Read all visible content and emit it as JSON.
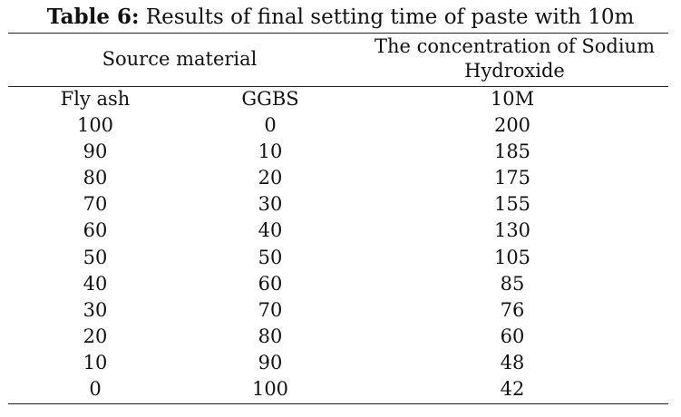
{
  "caption": {
    "label": "Table 6:",
    "text": "Results of final setting time of paste with 10m"
  },
  "header": {
    "source_material": "Source material",
    "concentration_line1": "The concentration of Sodium",
    "concentration_line2": "Hydroxide"
  },
  "columns": [
    "Fly ash",
    "GGBS",
    "10M"
  ],
  "rows": [
    [
      "100",
      "0",
      "200"
    ],
    [
      "90",
      "10",
      "185"
    ],
    [
      "80",
      "20",
      "175"
    ],
    [
      "70",
      "30",
      "155"
    ],
    [
      "60",
      "40",
      "130"
    ],
    [
      "50",
      "50",
      "105"
    ],
    [
      "40",
      "60",
      "85"
    ],
    [
      "30",
      "70",
      "76"
    ],
    [
      "20",
      "80",
      "60"
    ],
    [
      "10",
      "90",
      "48"
    ],
    [
      "0",
      "100",
      "42"
    ]
  ]
}
